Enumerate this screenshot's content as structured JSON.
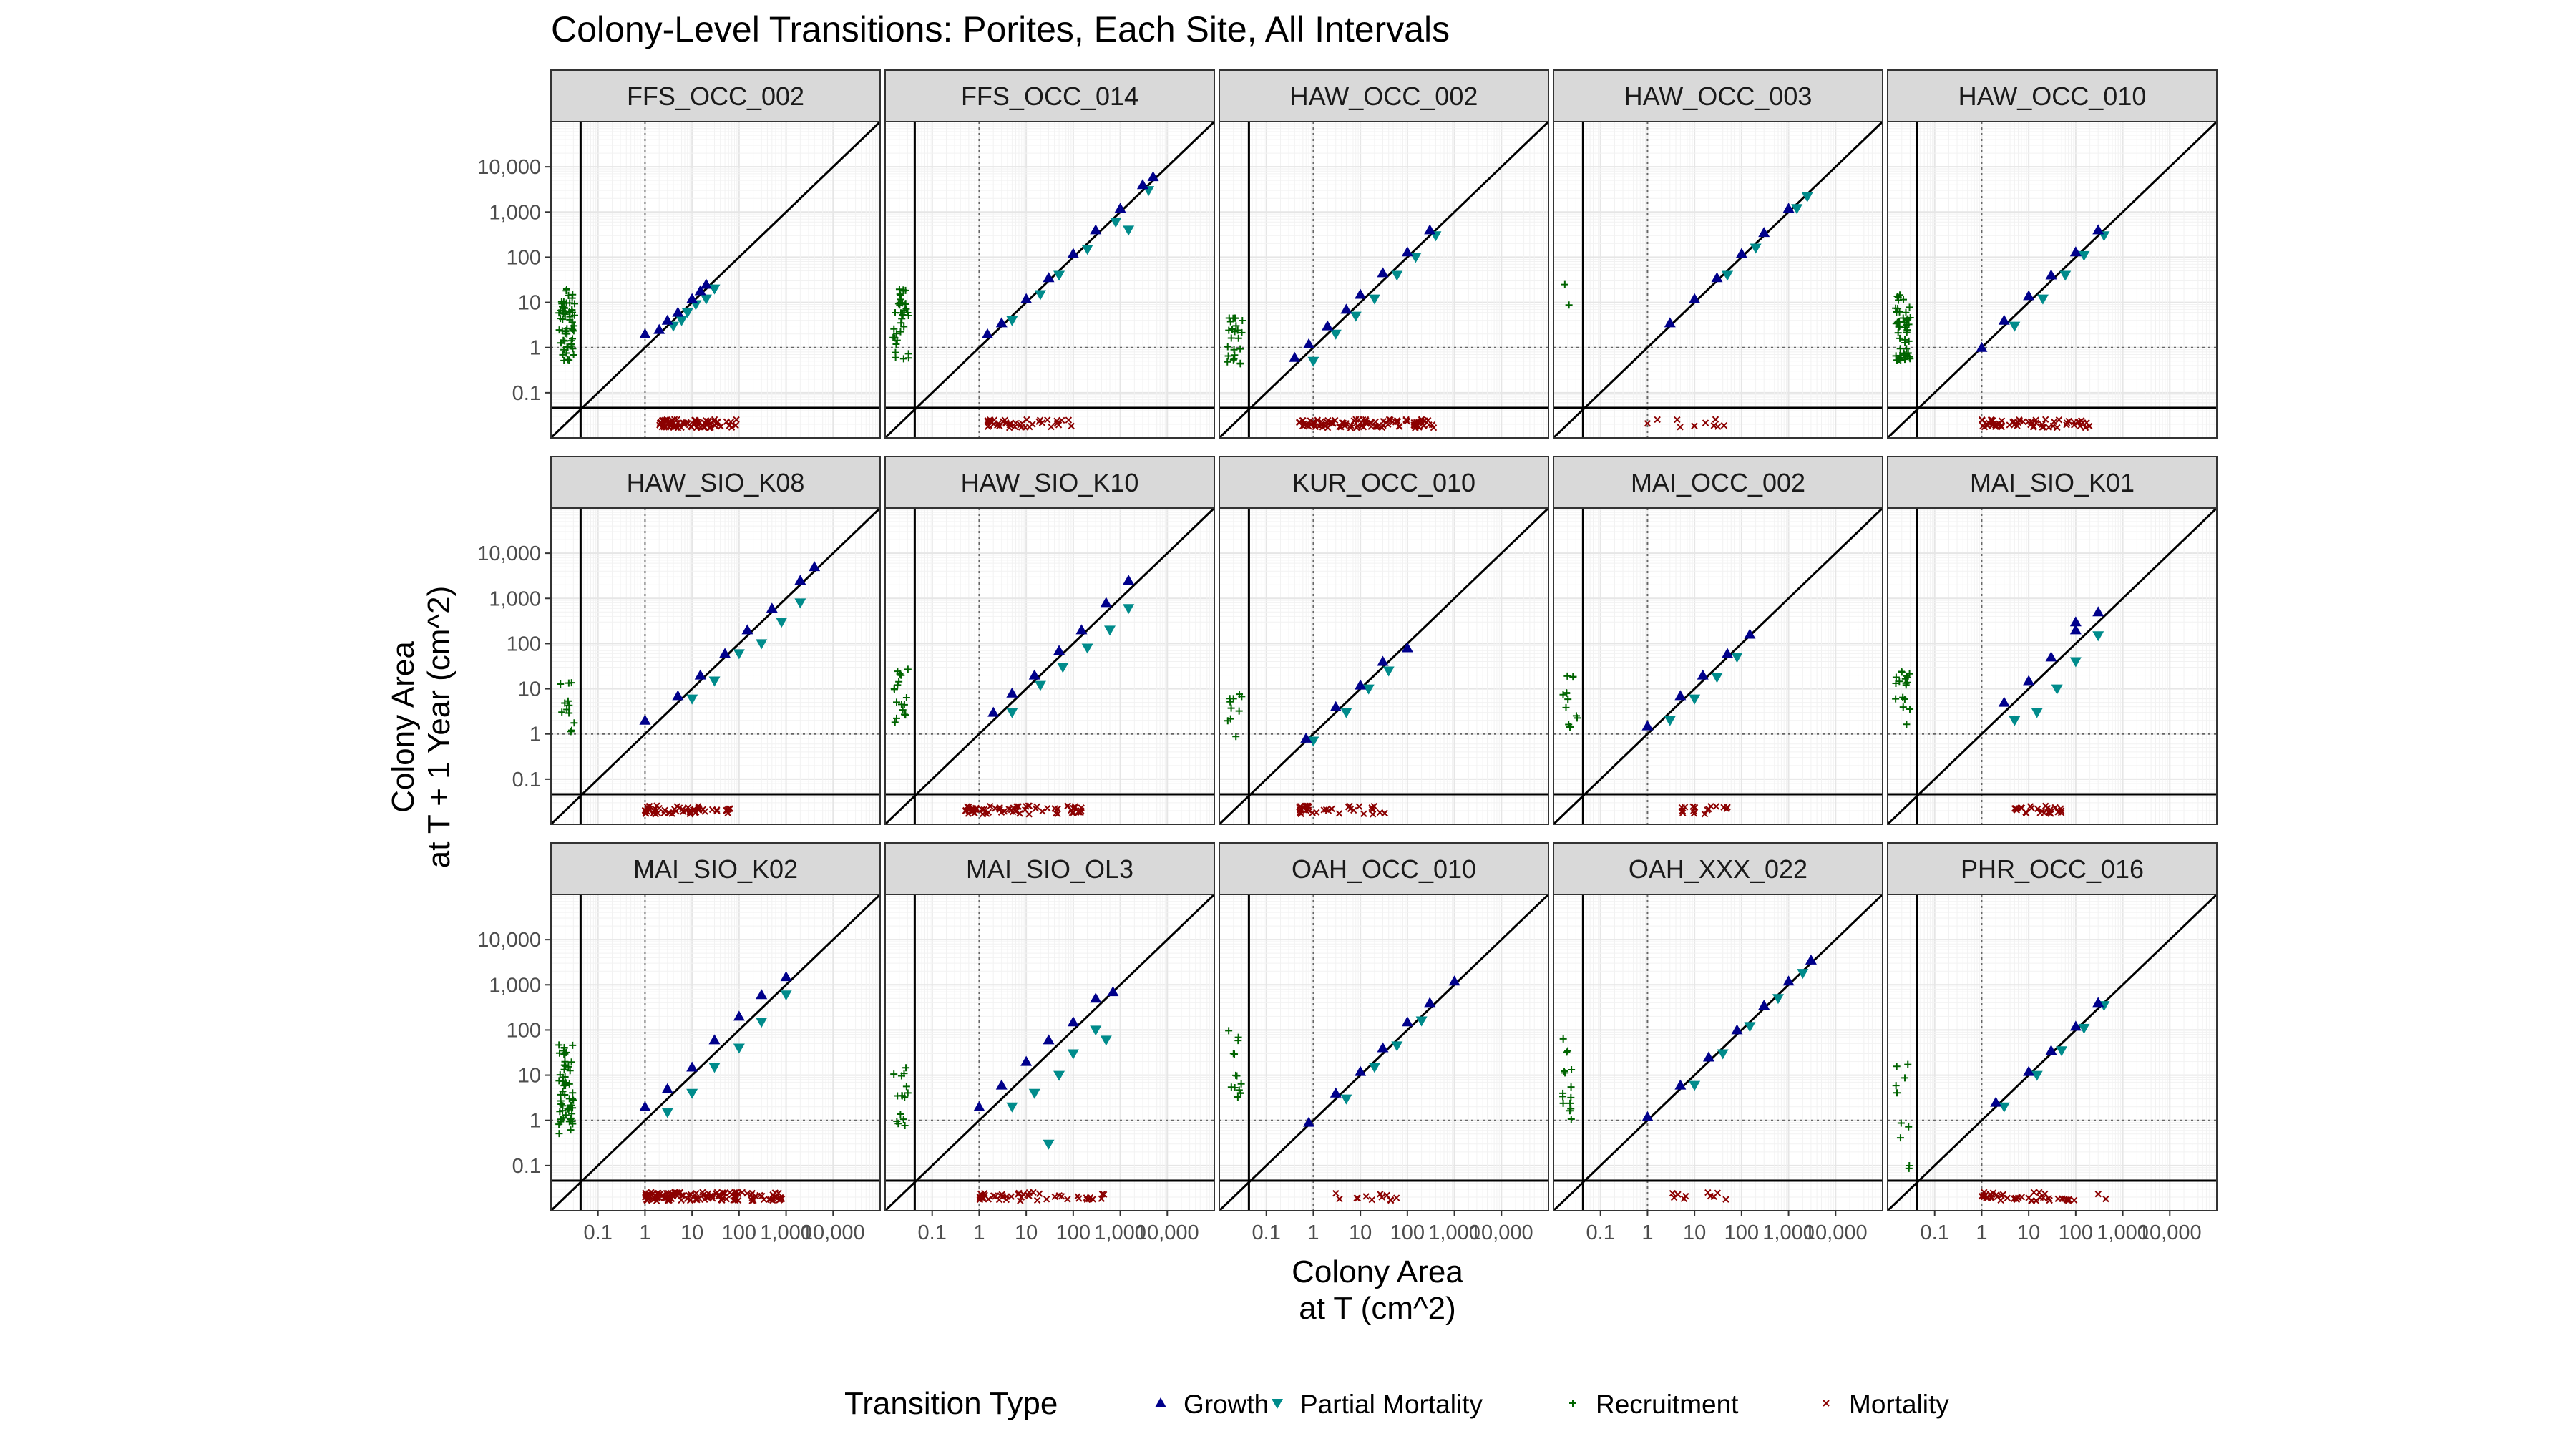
{
  "chart_data": {
    "type": "scatter",
    "title": "Colony-Level Transitions: Porites, Each Site, All Intervals",
    "xlabel": [
      "Colony Area",
      "at T (cm^2)"
    ],
    "ylabel": [
      "Colony Area",
      "at T + 1 Year (cm^2)"
    ],
    "scale": "log10",
    "xlim": [
      0.01,
      100000
    ],
    "ylim": [
      0.01,
      100000
    ],
    "x_ticks": [
      0.1,
      1,
      10,
      100,
      1000,
      10000
    ],
    "x_tick_labels": [
      "0.1",
      "1",
      "10",
      "100",
      "1,000",
      "10,000"
    ],
    "y_ticks": [
      0.1,
      1,
      10,
      100,
      1000,
      10000
    ],
    "y_tick_labels": [
      "0.1",
      "1",
      "10",
      "100",
      "1,000",
      "10,000"
    ],
    "reference_lines": {
      "diagonal": "y = x",
      "dotted_at": 1
    },
    "grid": true,
    "legend": {
      "title": "Transition Type",
      "position": "bottom",
      "items": [
        {
          "label": "Growth",
          "color": "#00008b",
          "shape": "triangle-up"
        },
        {
          "label": "Partial Mortality",
          "color": "#008b8b",
          "shape": "triangle-down"
        },
        {
          "label": "Recruitment",
          "color": "#006400",
          "shape": "plus"
        },
        {
          "label": "Mortality",
          "color": "#8b0000",
          "shape": "cross"
        }
      ]
    },
    "panels": [
      {
        "name": "FFS_OCC_002",
        "growth_points": [
          [
            1,
            2
          ],
          [
            2,
            2.5
          ],
          [
            3,
            4
          ],
          [
            5,
            6
          ],
          [
            10,
            12
          ],
          [
            15,
            18
          ],
          [
            20,
            25
          ]
        ],
        "partial_mortality_points": [
          [
            4,
            3
          ],
          [
            6,
            4
          ],
          [
            8,
            6
          ],
          [
            12,
            9
          ],
          [
            20,
            12
          ],
          [
            30,
            20
          ]
        ],
        "recruitment_range": [
          0.5,
          20
        ],
        "recruitment_count": 60,
        "mortality_range": [
          2,
          100
        ],
        "mortality_count": 80
      },
      {
        "name": "FFS_OCC_014",
        "growth_points": [
          [
            1.5,
            2
          ],
          [
            3,
            3.5
          ],
          [
            10,
            12
          ],
          [
            30,
            35
          ],
          [
            100,
            120
          ],
          [
            300,
            400
          ],
          [
            1000,
            1200
          ],
          [
            3000,
            4000
          ],
          [
            5000,
            6000
          ]
        ],
        "partial_mortality_points": [
          [
            5,
            4
          ],
          [
            20,
            15
          ],
          [
            50,
            40
          ],
          [
            200,
            150
          ],
          [
            800,
            600
          ],
          [
            1500,
            400
          ],
          [
            4000,
            3000
          ]
        ],
        "recruitment_range": [
          0.5,
          20
        ],
        "recruitment_count": 35,
        "mortality_range": [
          1.5,
          150
        ],
        "mortality_count": 40
      },
      {
        "name": "HAW_OCC_002",
        "growth_points": [
          [
            0.4,
            0.6
          ],
          [
            0.8,
            1.2
          ],
          [
            2,
            3
          ],
          [
            5,
            7
          ],
          [
            10,
            15
          ],
          [
            30,
            45
          ],
          [
            100,
            130
          ],
          [
            300,
            400
          ]
        ],
        "partial_mortality_points": [
          [
            1,
            0.5
          ],
          [
            3,
            2
          ],
          [
            8,
            5
          ],
          [
            20,
            12
          ],
          [
            60,
            40
          ],
          [
            150,
            100
          ],
          [
            400,
            300
          ]
        ],
        "recruitment_range": [
          0.3,
          5
        ],
        "recruitment_count": 25,
        "mortality_range": [
          0.5,
          400
        ],
        "mortality_count": 100
      },
      {
        "name": "HAW_OCC_003",
        "growth_points": [
          [
            3,
            3.5
          ],
          [
            10,
            12
          ],
          [
            30,
            35
          ],
          [
            100,
            120
          ],
          [
            300,
            350
          ],
          [
            1000,
            1200
          ]
        ],
        "partial_mortality_points": [
          [
            50,
            40
          ],
          [
            200,
            160
          ],
          [
            1500,
            1200
          ],
          [
            2500,
            2200
          ]
        ],
        "recruitment_range": [
          1,
          30
        ],
        "recruitment_count": 2,
        "mortality_range": [
          1,
          50
        ],
        "mortality_count": 10
      },
      {
        "name": "HAW_OCC_010",
        "growth_points": [
          [
            1,
            1
          ],
          [
            3,
            4
          ],
          [
            10,
            14
          ],
          [
            30,
            40
          ],
          [
            100,
            130
          ],
          [
            300,
            400
          ]
        ],
        "partial_mortality_points": [
          [
            5,
            3
          ],
          [
            20,
            12
          ],
          [
            60,
            40
          ],
          [
            150,
            110
          ],
          [
            400,
            300
          ]
        ],
        "recruitment_range": [
          0.5,
          20
        ],
        "recruitment_count": 50,
        "mortality_range": [
          1,
          200
        ],
        "mortality_count": 60
      },
      {
        "name": "HAW_SIO_K08",
        "growth_points": [
          [
            1,
            2
          ],
          [
            5,
            7
          ],
          [
            15,
            20
          ],
          [
            50,
            60
          ],
          [
            150,
            200
          ],
          [
            500,
            600
          ],
          [
            2000,
            2500
          ],
          [
            4000,
            5000
          ]
        ],
        "partial_mortality_points": [
          [
            10,
            6
          ],
          [
            30,
            15
          ],
          [
            100,
            60
          ],
          [
            300,
            100
          ],
          [
            800,
            300
          ],
          [
            2000,
            800
          ]
        ],
        "recruitment_range": [
          1,
          15
        ],
        "recruitment_count": 12,
        "mortality_range": [
          1,
          100
        ],
        "mortality_count": 55
      },
      {
        "name": "HAW_SIO_K10",
        "growth_points": [
          [
            2,
            3
          ],
          [
            5,
            8
          ],
          [
            15,
            20
          ],
          [
            50,
            70
          ],
          [
            150,
            200
          ],
          [
            500,
            800
          ],
          [
            1500,
            2500
          ]
        ],
        "partial_mortality_points": [
          [
            5,
            3
          ],
          [
            20,
            12
          ],
          [
            60,
            30
          ],
          [
            200,
            80
          ],
          [
            600,
            200
          ],
          [
            1500,
            600
          ]
        ],
        "recruitment_range": [
          1,
          30
        ],
        "recruitment_count": 18,
        "mortality_range": [
          0.5,
          200
        ],
        "mortality_count": 60
      },
      {
        "name": "KUR_OCC_010",
        "growth_points": [
          [
            0.7,
            0.8
          ],
          [
            3,
            4
          ],
          [
            10,
            12
          ],
          [
            30,
            40
          ],
          [
            100,
            80
          ]
        ],
        "partial_mortality_points": [
          [
            1,
            0.7
          ],
          [
            5,
            3
          ],
          [
            15,
            10
          ],
          [
            40,
            25
          ]
        ],
        "recruitment_range": [
          0.5,
          10
        ],
        "recruitment_count": 10,
        "mortality_range": [
          0.5,
          50
        ],
        "mortality_count": 35
      },
      {
        "name": "MAI_OCC_002",
        "growth_points": [
          [
            1,
            1.5
          ],
          [
            5,
            7
          ],
          [
            15,
            20
          ],
          [
            50,
            60
          ],
          [
            150,
            160
          ]
        ],
        "partial_mortality_points": [
          [
            3,
            2
          ],
          [
            10,
            6
          ],
          [
            30,
            18
          ],
          [
            80,
            50
          ]
        ],
        "recruitment_range": [
          1,
          20
        ],
        "recruitment_count": 12,
        "mortality_range": [
          5,
          50
        ],
        "mortality_count": 18
      },
      {
        "name": "MAI_SIO_K01",
        "growth_points": [
          [
            3,
            5
          ],
          [
            10,
            15
          ],
          [
            30,
            50
          ],
          [
            100,
            200
          ],
          [
            300,
            500
          ],
          [
            100,
            300
          ]
        ],
        "partial_mortality_points": [
          [
            5,
            2
          ],
          [
            15,
            3
          ],
          [
            40,
            10
          ],
          [
            100,
            40
          ],
          [
            300,
            150
          ]
        ],
        "recruitment_range": [
          1,
          40
        ],
        "recruitment_count": 18,
        "mortality_range": [
          5,
          50
        ],
        "mortality_count": 25
      },
      {
        "name": "MAI_SIO_K02",
        "growth_points": [
          [
            1,
            2
          ],
          [
            3,
            5
          ],
          [
            10,
            15
          ],
          [
            30,
            60
          ],
          [
            100,
            200
          ],
          [
            300,
            600
          ],
          [
            1000,
            1500
          ]
        ],
        "partial_mortality_points": [
          [
            3,
            1.5
          ],
          [
            10,
            4
          ],
          [
            30,
            15
          ],
          [
            100,
            40
          ],
          [
            300,
            150
          ],
          [
            1000,
            600
          ]
        ],
        "recruitment_range": [
          0.5,
          50
        ],
        "recruitment_count": 60,
        "mortality_range": [
          1,
          1000
        ],
        "mortality_count": 120
      },
      {
        "name": "MAI_SIO_OL3",
        "growth_points": [
          [
            1,
            2
          ],
          [
            3,
            6
          ],
          [
            10,
            20
          ],
          [
            30,
            60
          ],
          [
            100,
            150
          ],
          [
            300,
            500
          ],
          [
            700,
            700
          ]
        ],
        "partial_mortality_points": [
          [
            5,
            2
          ],
          [
            15,
            4
          ],
          [
            30,
            0.3
          ],
          [
            50,
            10
          ],
          [
            100,
            30
          ],
          [
            300,
            100
          ],
          [
            500,
            60
          ]
        ],
        "recruitment_range": [
          0.5,
          20
        ],
        "recruitment_count": 15,
        "mortality_range": [
          1,
          500
        ],
        "mortality_count": 45
      },
      {
        "name": "OAH_OCC_010",
        "growth_points": [
          [
            0.8,
            0.9
          ],
          [
            3,
            4
          ],
          [
            10,
            12
          ],
          [
            30,
            40
          ],
          [
            100,
            150
          ],
          [
            300,
            400
          ],
          [
            1000,
            1200
          ]
        ],
        "partial_mortality_points": [
          [
            5,
            3
          ],
          [
            20,
            15
          ],
          [
            60,
            45
          ],
          [
            200,
            160
          ]
        ],
        "recruitment_range": [
          3,
          100
        ],
        "recruitment_count": 14,
        "mortality_range": [
          3,
          100
        ],
        "mortality_count": 12
      },
      {
        "name": "OAH_XXX_022",
        "growth_points": [
          [
            1,
            1.2
          ],
          [
            5,
            6
          ],
          [
            20,
            25
          ],
          [
            80,
            100
          ],
          [
            300,
            350
          ],
          [
            1000,
            1200
          ],
          [
            3000,
            3500
          ]
        ],
        "partial_mortality_points": [
          [
            10,
            6
          ],
          [
            40,
            30
          ],
          [
            150,
            120
          ],
          [
            600,
            500
          ],
          [
            2000,
            1800
          ]
        ],
        "recruitment_range": [
          1,
          100
        ],
        "recruitment_count": 15,
        "mortality_range": [
          3,
          50
        ],
        "mortality_count": 10
      },
      {
        "name": "PHR_OCC_016",
        "growth_points": [
          [
            2,
            2.5
          ],
          [
            10,
            12
          ],
          [
            30,
            35
          ],
          [
            100,
            120
          ],
          [
            300,
            400
          ]
        ],
        "partial_mortality_points": [
          [
            3,
            2
          ],
          [
            15,
            10
          ],
          [
            50,
            35
          ],
          [
            150,
            110
          ],
          [
            400,
            350
          ]
        ],
        "recruitment_range": [
          0.05,
          20
        ],
        "recruitment_count": 10,
        "mortality_range": [
          1,
          500
        ],
        "mortality_count": 45
      }
    ]
  }
}
